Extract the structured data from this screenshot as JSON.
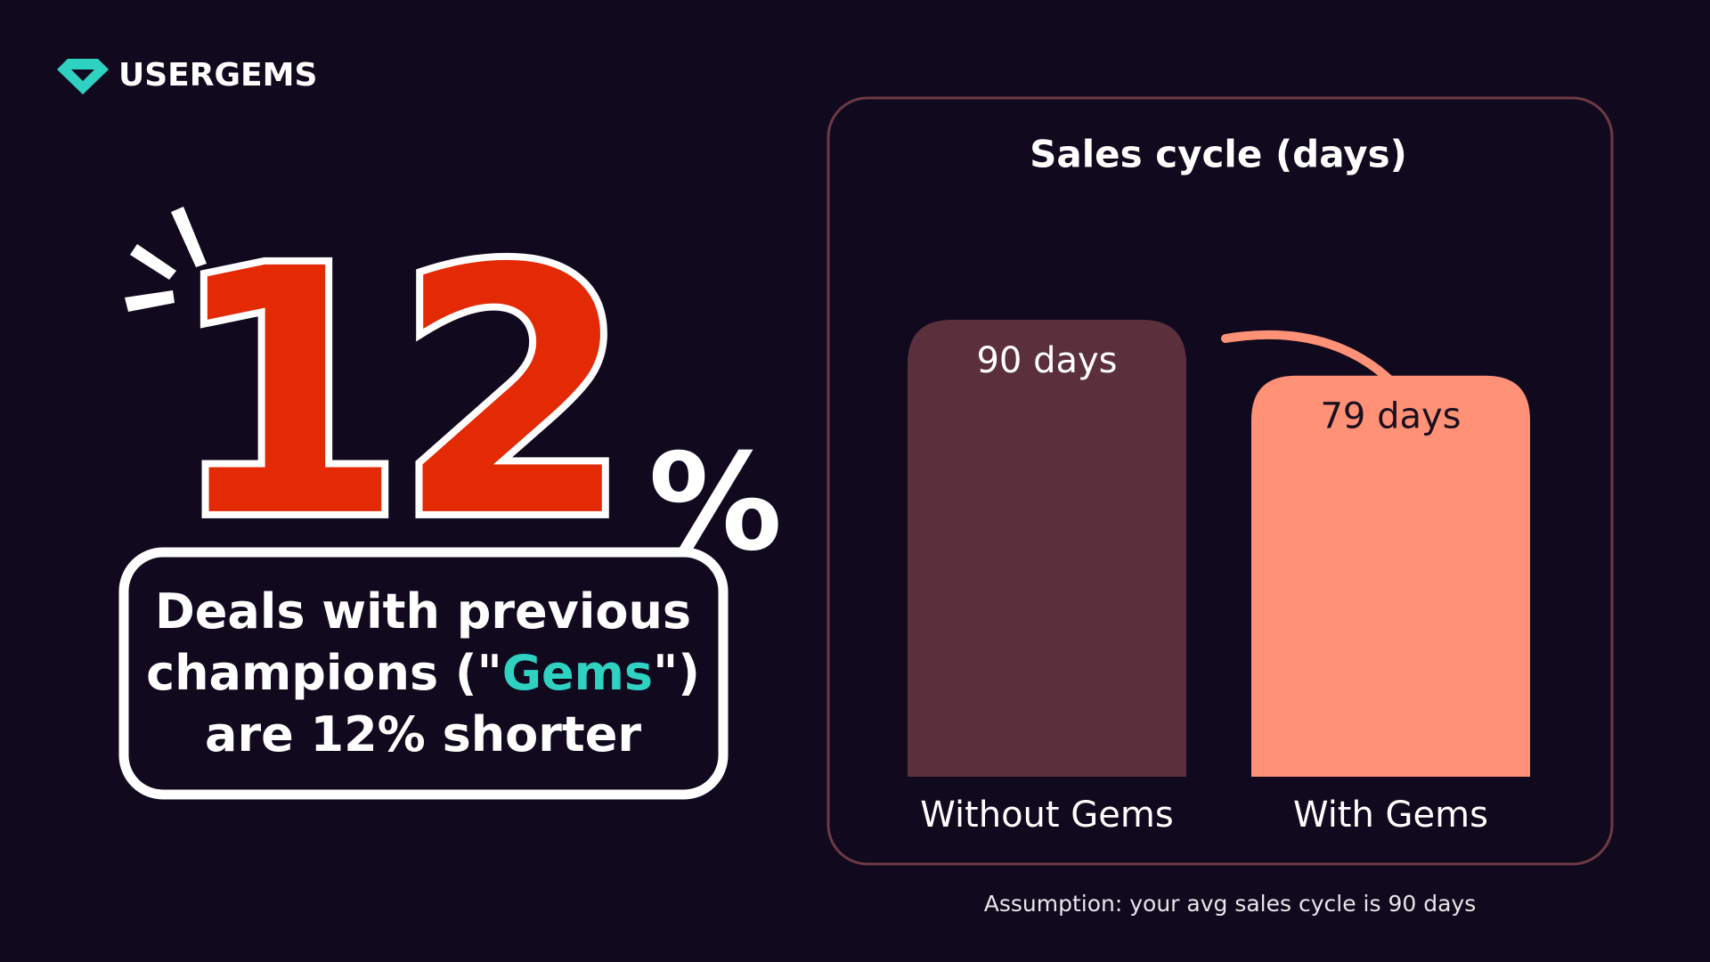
{
  "logo": {
    "text": "USERGEMS"
  },
  "headline": {
    "number": "12",
    "unit": "%"
  },
  "callout": {
    "lines": [
      [
        "Deals with previous"
      ],
      [
        "champions (\"",
        "Gems",
        "\")"
      ],
      [
        "are 12% shorter"
      ]
    ]
  },
  "footnote": "Assumption: your avg sales cycle is 90 days",
  "chart_data": {
    "type": "bar",
    "title": "Sales cycle (days)",
    "categories": [
      "Without Gems",
      "With Gems"
    ],
    "values": [
      90,
      79
    ],
    "value_labels": [
      "90 days",
      "79 days"
    ],
    "colors": [
      "#5b2f3c",
      "#ff9176"
    ]
  }
}
